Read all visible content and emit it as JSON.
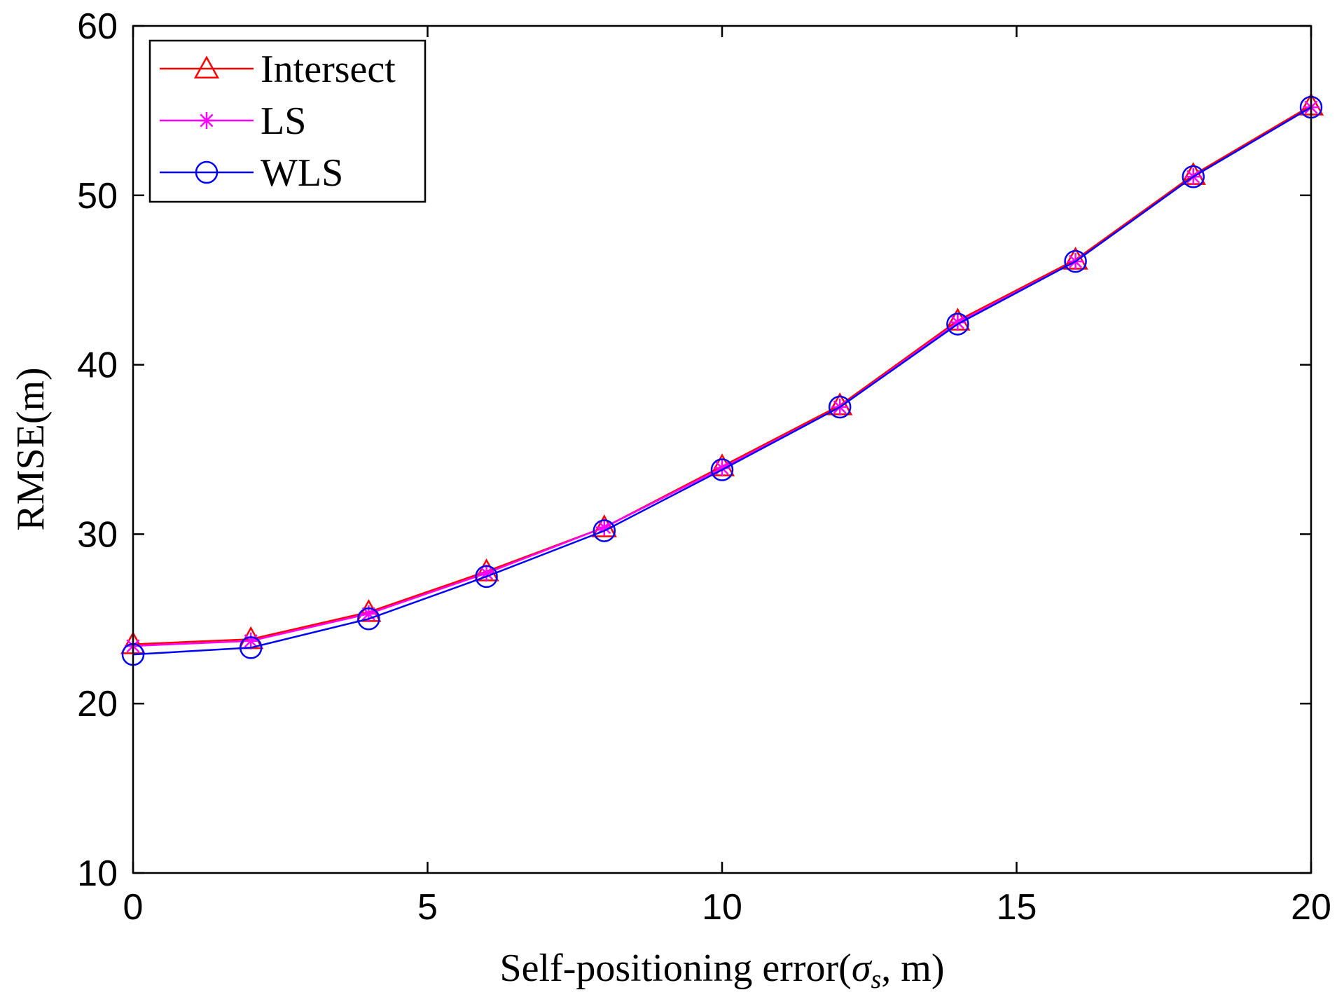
{
  "chart_data": {
    "type": "line",
    "title": "",
    "xlabel": "Self-positioning error(σs, m)",
    "xlabel_main": "Self-positioning error(",
    "xlabel_sym": "σ",
    "xlabel_sub": "s",
    "xlabel_tail": ", m)",
    "ylabel": "RMSE(m)",
    "xlim": [
      0,
      20
    ],
    "ylim": [
      10,
      60
    ],
    "xticks": [
      0,
      5,
      10,
      15,
      20
    ],
    "yticks": [
      10,
      20,
      30,
      40,
      50,
      60
    ],
    "grid": false,
    "legend_position": "top-left",
    "x": [
      0,
      2,
      4,
      6,
      8,
      10,
      12,
      14,
      16,
      18,
      20
    ],
    "series": [
      {
        "name": "Intersect",
        "color": "#ff0000",
        "marker": "triangle",
        "values": [
          23.5,
          23.8,
          25.4,
          27.8,
          30.4,
          34.0,
          37.6,
          42.6,
          46.2,
          51.2,
          55.3
        ]
      },
      {
        "name": "LS",
        "color": "#ff00ff",
        "marker": "asterisk",
        "values": [
          23.4,
          23.7,
          25.3,
          27.7,
          30.4,
          33.9,
          37.5,
          42.5,
          46.1,
          51.1,
          55.2
        ]
      },
      {
        "name": "WLS",
        "color": "#0000ff",
        "marker": "circle",
        "values": [
          22.9,
          23.3,
          25.0,
          27.5,
          30.2,
          33.8,
          37.5,
          42.4,
          46.1,
          51.1,
          55.2
        ]
      }
    ]
  }
}
